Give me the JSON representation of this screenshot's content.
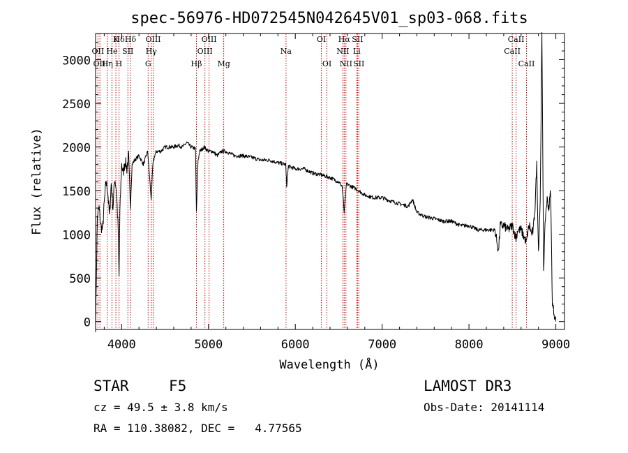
{
  "chart_data": {
    "type": "line",
    "title": "spec-56976-HD072545N042645V01_sp03-068.fits",
    "xlabel": "Wavelength (Å)",
    "ylabel": "Flux (relative)",
    "xlim": [
      3700,
      9100
    ],
    "ylim": [
      -90,
      3300
    ],
    "xticks": [
      4000,
      5000,
      6000,
      7000,
      8000,
      9000
    ],
    "yticks": [
      0,
      500,
      1000,
      1500,
      2000,
      2500,
      3000
    ],
    "series": [
      {
        "name": "flux",
        "x": [
          3700,
          3720,
          3740,
          3760,
          3780,
          3800,
          3820,
          3840,
          3860,
          3880,
          3900,
          3920,
          3940,
          3960,
          3970,
          3980,
          4000,
          4020,
          4040,
          4060,
          4080,
          4100,
          4120,
          4150,
          4200,
          4250,
          4300,
          4340,
          4360,
          4380,
          4400,
          4450,
          4500,
          4550,
          4600,
          4650,
          4700,
          4750,
          4800,
          4850,
          4861,
          4880,
          4900,
          4950,
          5000,
          5050,
          5100,
          5150,
          5200,
          5300,
          5400,
          5500,
          5600,
          5700,
          5800,
          5890,
          5900,
          5920,
          6000,
          6100,
          6200,
          6300,
          6400,
          6500,
          6540,
          6563,
          6590,
          6620,
          6700,
          6800,
          6900,
          7000,
          7100,
          7200,
          7300,
          7350,
          7400,
          7500,
          7600,
          7700,
          7800,
          7900,
          8000,
          8100,
          8200,
          8300,
          8340,
          8360,
          8400,
          8450,
          8500,
          8542,
          8560,
          8600,
          8662,
          8680,
          8700,
          8720,
          8740,
          8760,
          8780,
          8800,
          8820,
          8840,
          8860,
          8880,
          8900,
          8920,
          8940,
          8960,
          8980,
          9000
        ],
        "y": [
          -50,
          1200,
          1300,
          1100,
          1050,
          1350,
          1600,
          1500,
          1200,
          1580,
          1300,
          1650,
          1500,
          1050,
          500,
          1250,
          1800,
          1700,
          1850,
          1750,
          1900,
          1300,
          1800,
          1850,
          1900,
          1800,
          1950,
          1400,
          1800,
          1900,
          1950,
          1950,
          2000,
          2000,
          2000,
          2020,
          2000,
          2050,
          2000,
          1980,
          1250,
          1850,
          1950,
          2000,
          1950,
          1950,
          1900,
          1950,
          1950,
          1900,
          1900,
          1880,
          1850,
          1850,
          1820,
          1800,
          1550,
          1780,
          1750,
          1750,
          1700,
          1680,
          1650,
          1600,
          1550,
          1250,
          1580,
          1560,
          1520,
          1450,
          1420,
          1420,
          1380,
          1350,
          1320,
          1400,
          1250,
          1200,
          1180,
          1150,
          1150,
          1100,
          1100,
          1050,
          1050,
          1050,
          800,
          1100,
          1100,
          1050,
          1100,
          950,
          1050,
          1050,
          900,
          1050,
          1100,
          1000,
          1050,
          1300,
          1800,
          800,
          1400,
          3280,
          600,
          1200,
          1400,
          1300,
          1500,
          200,
          100,
          0
        ]
      }
    ],
    "line_labels_top": [
      {
        "text": "Hδ",
        "x": 3970
      },
      {
        "text": "K",
        "x": 3934
      },
      {
        "text": "Hδ",
        "x": 4102
      },
      {
        "text": "OIII",
        "x": 4363
      },
      {
        "text": "OIII",
        "x": 5007
      },
      {
        "text": "OI",
        "x": 6300
      },
      {
        "text": "Hα",
        "x": 6563
      },
      {
        "text": "SII",
        "x": 6717
      },
      {
        "text": "CaII",
        "x": 8542
      }
    ],
    "line_labels_mid": [
      {
        "text": "OII",
        "x": 3727
      },
      {
        "text": "He",
        "x": 3889
      },
      {
        "text": "SII",
        "x": 4072
      },
      {
        "text": "Hγ",
        "x": 4341
      },
      {
        "text": "OIII",
        "x": 4959
      },
      {
        "text": "Na",
        "x": 5893
      },
      {
        "text": "NII",
        "x": 6548
      },
      {
        "text": "Li",
        "x": 6708
      },
      {
        "text": "CaII",
        "x": 8498
      }
    ],
    "line_labels_low": [
      {
        "text": "OIII",
        "x": 3760
      },
      {
        "text": "Hη",
        "x": 3835
      },
      {
        "text": "H",
        "x": 3968
      },
      {
        "text": "G",
        "x": 4305
      },
      {
        "text": "Hβ",
        "x": 4861
      },
      {
        "text": "Mg",
        "x": 5175
      },
      {
        "text": "OI",
        "x": 6364
      },
      {
        "text": "NII",
        "x": 6583
      },
      {
        "text": "SII",
        "x": 6731
      },
      {
        "text": "CaII",
        "x": 8662
      }
    ],
    "line_positions": [
      3727,
      3750,
      3835,
      3889,
      3934,
      3970,
      4072,
      4102,
      4305,
      4341,
      4363,
      4861,
      4959,
      5007,
      5175,
      5893,
      6300,
      6364,
      6548,
      6563,
      6583,
      6708,
      6717,
      6731,
      8498,
      8542,
      8662
    ]
  },
  "footer": {
    "object_class": "STAR",
    "subclass": "F5",
    "survey": "LAMOST DR3",
    "redshift": "cz = 49.5 ± 3.8 km/s",
    "obs_date": "Obs-Date: 20141114",
    "coords": "RA = 110.38082, DEC =   4.77565"
  },
  "colors": {
    "line": "#000000",
    "marker": "#c00000",
    "axis": "#000000"
  }
}
